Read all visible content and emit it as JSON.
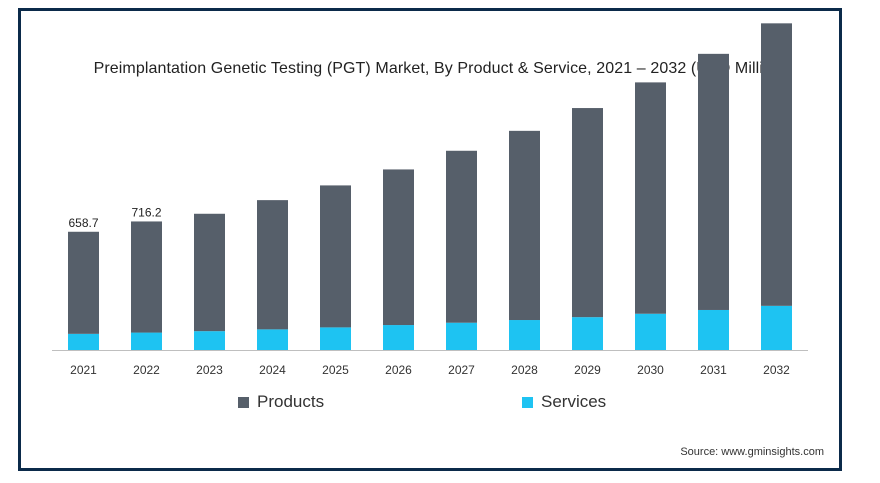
{
  "chart_data": {
    "type": "bar",
    "stacked": true,
    "title": "Preimplantation Genetic Testing (PGT) Market, By Product & Service, 2021 – 2032 (USD Million)",
    "categories": [
      "2021",
      "2022",
      "2023",
      "2024",
      "2025",
      "2026",
      "2027",
      "2028",
      "2029",
      "2030",
      "2031",
      "2032"
    ],
    "series": [
      {
        "name": "Services",
        "color": "#1ec3f2",
        "values": [
          90,
          97,
          105,
          115,
          126,
          139,
          152,
          167,
          183,
          202,
          223,
          246
        ]
      },
      {
        "name": "Products",
        "color": "#565f6a",
        "values": [
          568.7,
          619.2,
          654,
          720,
          791,
          867,
          958,
          1054,
          1165,
          1289,
          1427,
          1574
        ]
      }
    ],
    "data_labels": [
      "658.7",
      "716.2"
    ],
    "ylim": [
      0,
      1950
    ],
    "grid": false,
    "legend_position": "bottom"
  },
  "legend": {
    "products": "Products",
    "services": "Services"
  },
  "source": "Source: www.gminsights.com"
}
